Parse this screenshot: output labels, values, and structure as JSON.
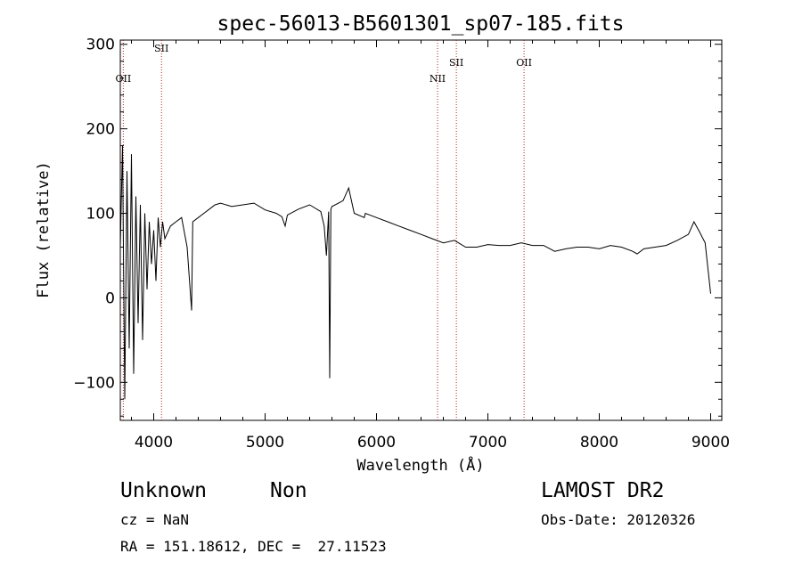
{
  "chart_data": {
    "type": "line",
    "title": "spec-56013-B5601301_sp07-185.fits",
    "xlabel": "Wavelength (Å)",
    "ylabel": "Flux (relative)",
    "xlim": [
      3700,
      9100
    ],
    "ylim": [
      -145,
      305
    ],
    "xticks": [
      4000,
      5000,
      6000,
      7000,
      8000,
      9000
    ],
    "yticks": [
      -100,
      0,
      100,
      200,
      300
    ],
    "xtick_labels": [
      "4000",
      "5000",
      "6000",
      "7000",
      "8000",
      "9000"
    ],
    "ytick_labels": [
      "−100",
      "0",
      "100",
      "200",
      "300"
    ],
    "grid": false,
    "line_color": "#000000",
    "marker_color": "#b22222",
    "series": [
      {
        "x": [
          3700,
          3720,
          3740,
          3760,
          3780,
          3800,
          3820,
          3840,
          3860,
          3880,
          3900,
          3920,
          3940,
          3960,
          3980,
          4000,
          4020,
          4040,
          4060,
          4080,
          4100,
          4150,
          4200,
          4250,
          4300,
          4340,
          4350,
          4400,
          4450,
          4500,
          4550,
          4600,
          4700,
          4800,
          4900,
          5000,
          5100,
          5150,
          5180,
          5200,
          5300,
          5400,
          5500,
          5530,
          5550,
          5570,
          5580,
          5590,
          5600,
          5700,
          5750,
          5800,
          5890,
          5900,
          6000,
          6100,
          6200,
          6300,
          6400,
          6500,
          6600,
          6700,
          6800,
          6900,
          7000,
          7100,
          7200,
          7300,
          7400,
          7500,
          7600,
          7700,
          7800,
          7900,
          8000,
          8100,
          8200,
          8300,
          8340,
          8400,
          8500,
          8600,
          8700,
          8800,
          8850,
          8900,
          8950,
          9000
        ],
        "y": [
          60,
          180,
          -120,
          150,
          -60,
          170,
          -90,
          120,
          -30,
          110,
          -50,
          100,
          10,
          90,
          40,
          80,
          20,
          95,
          60,
          90,
          70,
          85,
          90,
          95,
          60,
          -15,
          90,
          95,
          100,
          105,
          110,
          112,
          108,
          110,
          112,
          104,
          100,
          96,
          85,
          98,
          105,
          110,
          102,
          85,
          50,
          102,
          -95,
          105,
          108,
          115,
          130,
          100,
          95,
          100,
          95,
          90,
          85,
          80,
          75,
          70,
          65,
          68,
          60,
          60,
          63,
          62,
          62,
          65,
          62,
          62,
          55,
          58,
          60,
          60,
          58,
          62,
          60,
          55,
          52,
          58,
          60,
          62,
          68,
          75,
          90,
          78,
          65,
          5
        ]
      }
    ],
    "line_markers": [
      {
        "label": "OII",
        "x": 3727
      },
      {
        "label": "SII",
        "x": 4070
      },
      {
        "label": "NII",
        "x": 6548
      },
      {
        "label": "SII",
        "x": 6717
      },
      {
        "label": "OII",
        "x": 7325
      }
    ]
  },
  "info": {
    "class": "Unknown",
    "subclass": "Non",
    "survey": "LAMOST DR2",
    "cz": "cz = NaN",
    "obs_date": "Obs-Date: 20120326",
    "coords": "RA = 151.18612, DEC =  27.11523"
  }
}
